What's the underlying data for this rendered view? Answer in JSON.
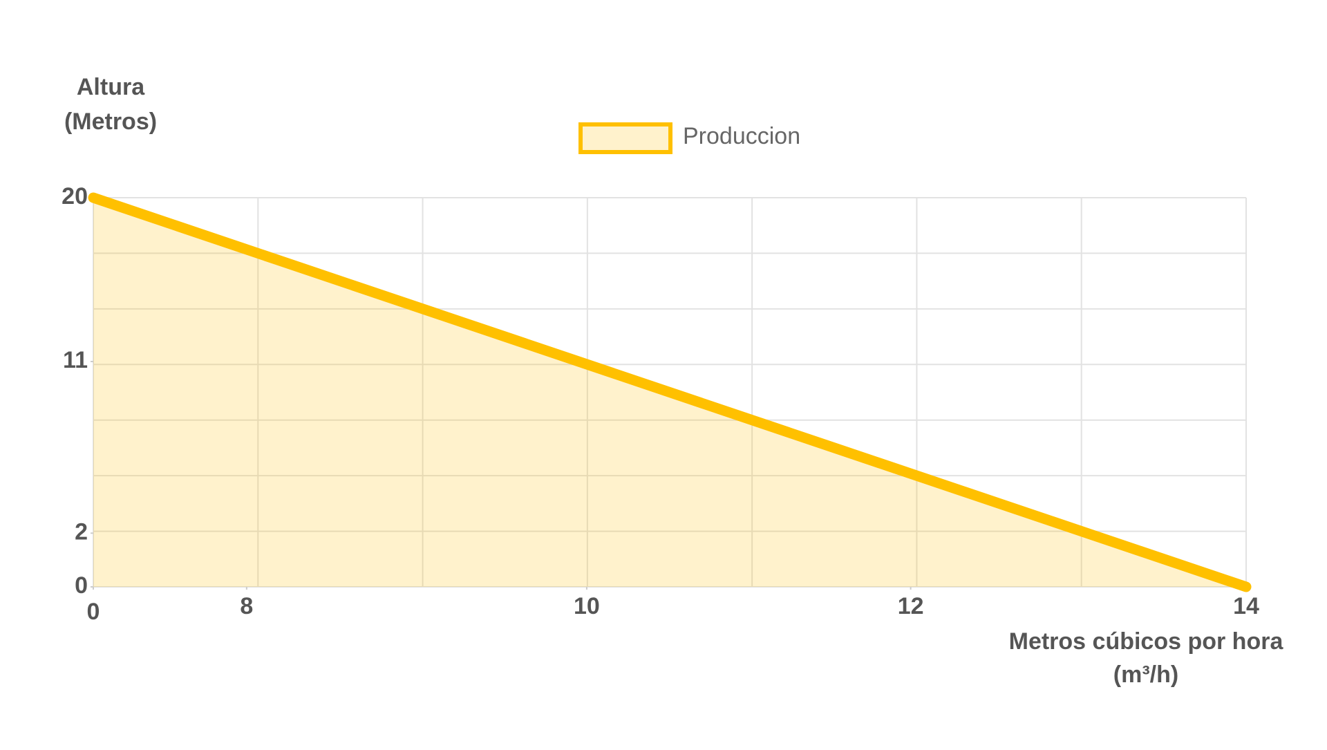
{
  "chart_data": {
    "type": "area",
    "y_label": [
      "Altura",
      "(Metros)"
    ],
    "x_label": [
      "Metros cúbicos por hora",
      "(m³/h)"
    ],
    "x": [
      0,
      14
    ],
    "series": [
      {
        "name": "Produccion",
        "color": "#ffc000",
        "values": [
          20,
          0
        ]
      }
    ],
    "xlim": [
      0,
      14
    ],
    "ylim": [
      0,
      20
    ],
    "xticks": [
      0,
      8,
      10,
      12,
      14
    ],
    "yticks": [
      0,
      2,
      11,
      20
    ],
    "grid": true,
    "legend": "top"
  }
}
